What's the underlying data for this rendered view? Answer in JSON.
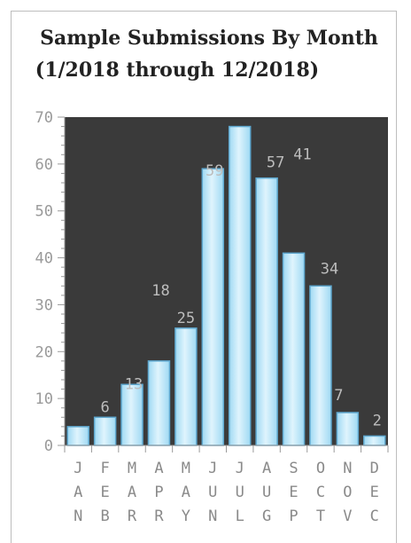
{
  "chart_data": {
    "type": "bar",
    "title": "Sample Submissions By Month",
    "subtitle": "(1/2018 through 12/2018)",
    "categories": [
      "JAN",
      "FEB",
      "MAR",
      "APR",
      "MAY",
      "JUN",
      "JUL",
      "AUG",
      "SEP",
      "OCT",
      "NOV",
      "DEC"
    ],
    "values": [
      4,
      6,
      13,
      18,
      25,
      59,
      68,
      57,
      41,
      34,
      7,
      2
    ],
    "data_labels": [
      "",
      "6",
      "13",
      "18",
      "25",
      "59",
      "",
      "57",
      "41",
      "34",
      "7",
      "2"
    ],
    "xlabel": "",
    "ylabel": "",
    "ylim": [
      0,
      70
    ],
    "yticks": [
      "0",
      "10",
      "20",
      "30",
      "40",
      "50",
      "60",
      "70"
    ],
    "grid": false,
    "legend": "none",
    "colors": {
      "plot_background": "#3a3a3a",
      "bar_fill_light": "#dff4fd",
      "bar_fill_dark": "#9fd9f3",
      "bar_stroke": "#5fa8cf",
      "axis": "#9a9a9a"
    }
  }
}
